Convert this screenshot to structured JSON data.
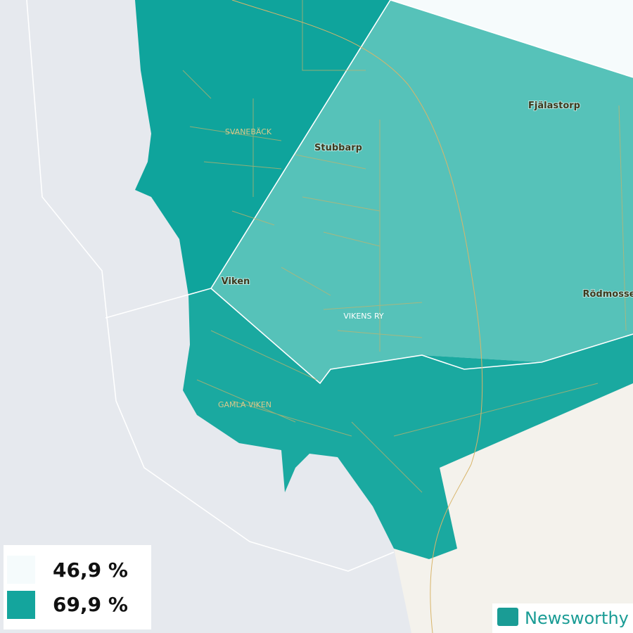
{
  "places": [
    {
      "label": "Fjälastorp",
      "kind": "village"
    },
    {
      "label": "Stubbarp",
      "kind": "village"
    },
    {
      "label": "SVANEBÄCK",
      "kind": "district"
    },
    {
      "label": "Viken",
      "kind": "village"
    },
    {
      "label": "VIKENS RY",
      "kind": "district"
    },
    {
      "label": "Rödmosse",
      "kind": "village"
    },
    {
      "label": "GAMLA VIKEN",
      "kind": "district"
    }
  ],
  "legend": {
    "entries": [
      {
        "label": "46,9 %",
        "color": "#f5fbfc"
      },
      {
        "label": "69,9 %",
        "color": "#14a59d"
      }
    ]
  },
  "brand": "Newsworthy"
}
